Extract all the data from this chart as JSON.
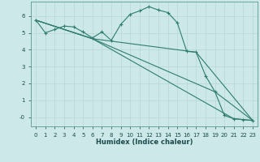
{
  "xlabel": "Humidex (Indice chaleur)",
  "bg_color": "#cce8e8",
  "grid_color": "#b8d8d0",
  "line_color": "#2e7d6e",
  "xlim": [
    -0.5,
    23.5
  ],
  "ylim": [
    -0.55,
    6.85
  ],
  "xticks": [
    0,
    1,
    2,
    3,
    4,
    5,
    6,
    7,
    8,
    9,
    10,
    11,
    12,
    13,
    14,
    15,
    16,
    17,
    18,
    19,
    20,
    21,
    22,
    23
  ],
  "yticks": [
    0,
    1,
    2,
    3,
    4,
    5,
    6
  ],
  "ytick_labels": [
    "-0",
    "1",
    "2",
    "3",
    "4",
    "5",
    "6"
  ],
  "line1_x": [
    0,
    1,
    2,
    3,
    4,
    5,
    6,
    7,
    8,
    9,
    10,
    11,
    12,
    13,
    14,
    15,
    16,
    17,
    18,
    19,
    20,
    21,
    22,
    23
  ],
  "line1_y": [
    5.75,
    5.0,
    5.2,
    5.4,
    5.35,
    5.05,
    4.7,
    5.05,
    4.55,
    5.5,
    6.1,
    6.3,
    6.55,
    6.35,
    6.2,
    5.6,
    3.9,
    3.85,
    2.45,
    1.5,
    0.1,
    -0.1,
    -0.15,
    -0.2
  ],
  "line2_x": [
    0,
    6,
    21,
    23
  ],
  "line2_y": [
    5.75,
    4.65,
    -0.1,
    -0.2
  ],
  "line3_x": [
    0,
    6,
    19,
    23
  ],
  "line3_y": [
    5.75,
    4.65,
    1.5,
    -0.2
  ],
  "line4_x": [
    0,
    6,
    17,
    23
  ],
  "line4_y": [
    5.75,
    4.65,
    3.85,
    -0.2
  ]
}
